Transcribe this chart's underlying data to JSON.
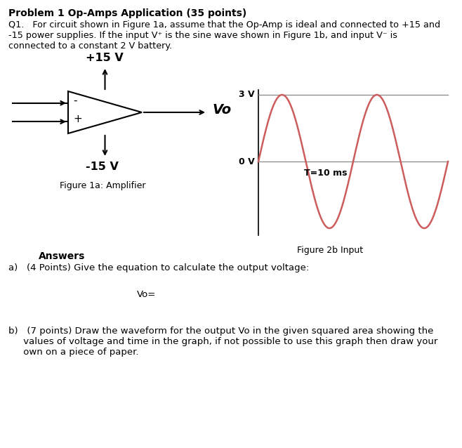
{
  "title": "Problem 1 Op-Amps Application (35 points)",
  "plus15_label": "+15 V",
  "minus15_label": "-15 V",
  "vo_label": "Vo",
  "fig1a_label": "Figure 1a: Amplifier",
  "fig2b_label": "Figure 2b Input",
  "sine_color": "#cd5c5c",
  "y_label_3v": "3 V",
  "y_label_0v": "0 V",
  "T_label": "T=10 ms",
  "answers_title": "Answers",
  "part_a_text": "a)   (4 Points) Give the equation to calculate the output voltage:",
  "vo_eq": "Vo=",
  "background_color": "#ffffff",
  "text_color": "#000000",
  "grid_color": "#888888",
  "q1_line1": "Q1.   For circuit shown in Figure 1a, assume that the Op-Amp is ideal and connected to +15 and",
  "q1_line2": "-15 power supplies. If the input V⁺ is the sine wave shown in Figure 1b, and input V⁻ is",
  "q1_line3": "connected to a constant 2 V battery.",
  "part_b_line1": "b)   (7 points) Draw the waveform for the output Vo in the given squared area showing the",
  "part_b_line2": "     values of voltage and time in the graph, if not possible to use this graph then draw your",
  "part_b_line3": "     own on a piece of paper."
}
